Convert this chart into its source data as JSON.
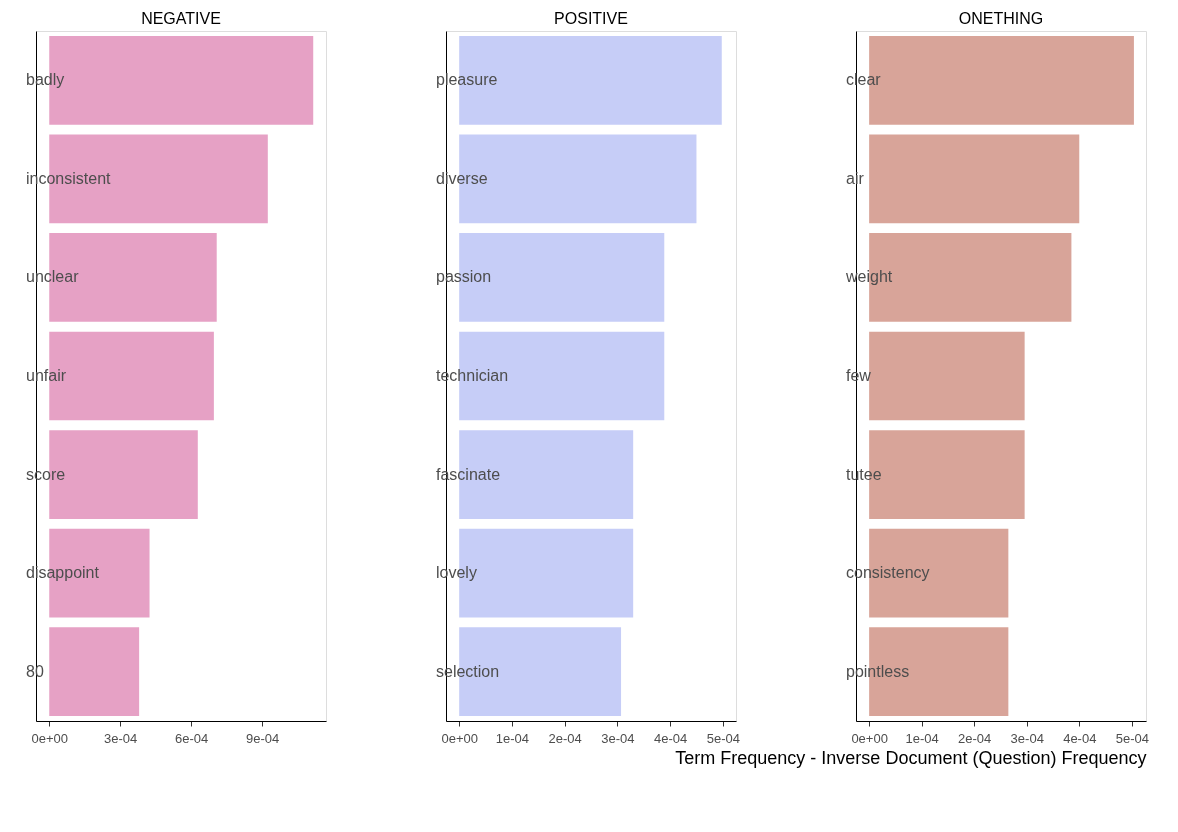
{
  "chart_data": [
    {
      "type": "bar",
      "orientation": "horizontal",
      "title": "NEGATIVE",
      "categories": [
        "badly",
        "inconsistent",
        "unclear",
        "unfair",
        "score",
        "disappoint",
        "80"
      ],
      "values": [
        0.001116,
        0.000924,
        0.000708,
        0.000696,
        0.000628,
        0.000424,
        0.00038
      ],
      "color": "#e6a1c5",
      "xlim": [
        -5.6e-05,
        0.00117
      ],
      "xticks": [
        {
          "value": 0,
          "label": "0e+00"
        },
        {
          "value": 0.0003,
          "label": "3e-04"
        },
        {
          "value": 0.0006,
          "label": "6e-04"
        },
        {
          "value": 0.0009,
          "label": "9e-04"
        }
      ],
      "grid": false
    },
    {
      "type": "bar",
      "orientation": "horizontal",
      "title": "POSITIVE",
      "categories": [
        "pleasure",
        "diverse",
        "passion",
        "technician",
        "fascinate",
        "lovely",
        "selection"
      ],
      "values": [
        0.000498,
        0.00045,
        0.000389,
        0.000389,
        0.00033,
        0.00033,
        0.000307
      ],
      "color": "#c6cdf7",
      "xlim": [
        -2.5e-05,
        0.000525
      ],
      "xticks": [
        {
          "value": 0,
          "label": "0e+00"
        },
        {
          "value": 0.0001,
          "label": "1e-04"
        },
        {
          "value": 0.0002,
          "label": "2e-04"
        },
        {
          "value": 0.0003,
          "label": "3e-04"
        },
        {
          "value": 0.0004,
          "label": "4e-04"
        },
        {
          "value": 0.0005,
          "label": "5e-04"
        }
      ],
      "grid": false
    },
    {
      "type": "bar",
      "orientation": "horizontal",
      "title": "ONETHING",
      "categories": [
        "clear",
        "air",
        "weight",
        "few",
        "tutee",
        "consistency",
        "pointless"
      ],
      "values": [
        0.000504,
        0.0004,
        0.000385,
        0.000296,
        0.000296,
        0.000265,
        0.000265
      ],
      "color": "#d8a499",
      "xlim": [
        -2.5e-05,
        0.000527
      ],
      "xticks": [
        {
          "value": 0,
          "label": "0e+00"
        },
        {
          "value": 0.0001,
          "label": "1e-04"
        },
        {
          "value": 0.0002,
          "label": "2e-04"
        },
        {
          "value": 0.0003,
          "label": "3e-04"
        },
        {
          "value": 0.0004,
          "label": "4e-04"
        },
        {
          "value": 0.0005,
          "label": "5e-04"
        }
      ],
      "xlabel": "Term Frequency - Inverse Document (Question) Frequency",
      "grid": false
    }
  ]
}
